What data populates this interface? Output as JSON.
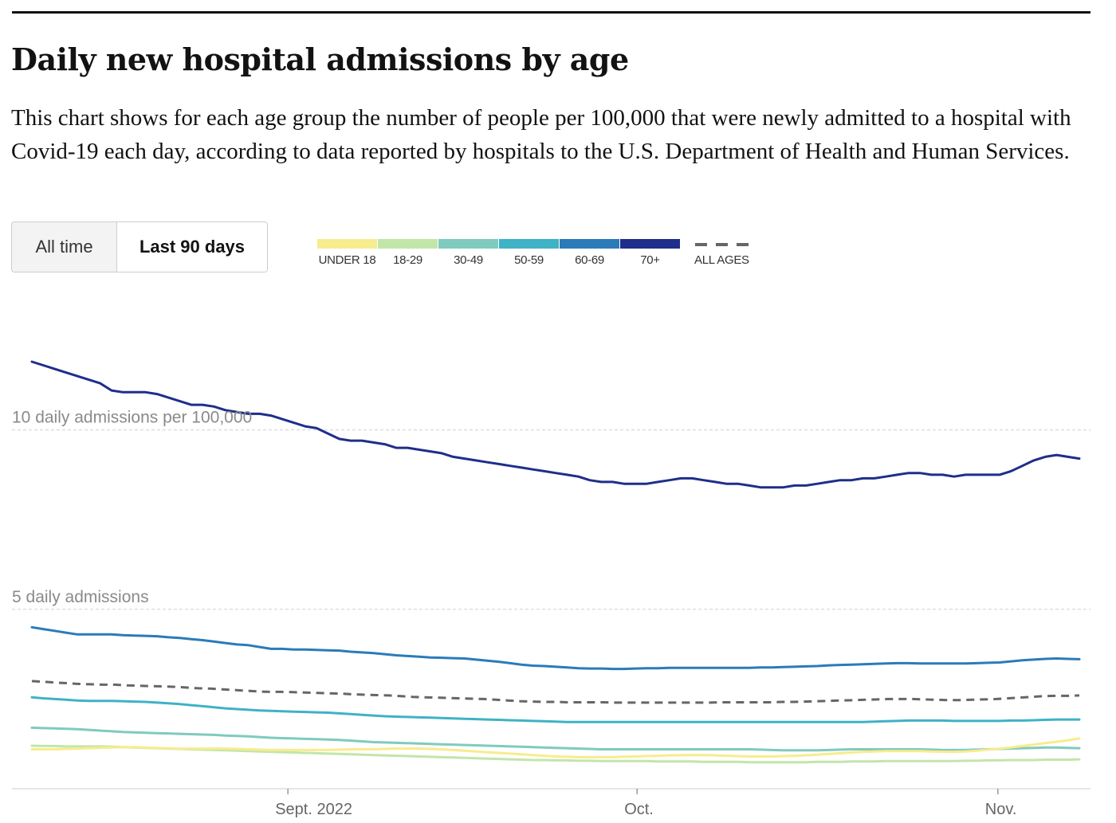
{
  "header": {
    "title": "Daily new hospital admissions by age",
    "subtitle": "This chart shows for each age group the number of people per 100,000 that were newly admitted to a hospital with Covid-19 each day, according to data reported by hospitals to the U.S. Department of Health and Human Services."
  },
  "toggle": {
    "all_time_label": "All time",
    "last_90_label": "Last 90 days",
    "selected": "Last 90 days"
  },
  "legend": {
    "items": [
      {
        "label": "UNDER 18",
        "color": "#f7ec8e"
      },
      {
        "label": "18-29",
        "color": "#c2e6aa"
      },
      {
        "label": "30-49",
        "color": "#7fcbbd"
      },
      {
        "label": "50-59",
        "color": "#3fb2c5"
      },
      {
        "label": "60-69",
        "color": "#2b7bb8"
      },
      {
        "label": "70+",
        "color": "#1f2e8a"
      }
    ],
    "all_ages_label": "ALL AGES",
    "all_ages_color": "#666666"
  },
  "chart_data": {
    "type": "line",
    "x_start": "2022-08-10",
    "x_end": "2022-11-08",
    "ylim": [
      0,
      13.1
    ],
    "grid_values": [
      5,
      10
    ],
    "grid_labels": [
      "5 daily admissions",
      "10 daily admissions per 100,000"
    ],
    "x_ticks": [
      {
        "date": "2022-09-01",
        "label": "Sept. 2022"
      },
      {
        "date": "2022-10-01",
        "label": "Oct."
      },
      {
        "date": "2022-11-01",
        "label": "Nov."
      }
    ],
    "series": [
      {
        "name": "70+",
        "color": "#1f2e8a",
        "dashed": false,
        "values": [
          11.9,
          11.8,
          11.7,
          11.6,
          11.5,
          11.4,
          11.3,
          11.1,
          11.05,
          11.05,
          11.05,
          11.0,
          10.9,
          10.8,
          10.7,
          10.7,
          10.65,
          10.55,
          10.5,
          10.45,
          10.45,
          10.4,
          10.3,
          10.2,
          10.1,
          10.05,
          9.9,
          9.75,
          9.7,
          9.7,
          9.65,
          9.6,
          9.5,
          9.5,
          9.45,
          9.4,
          9.35,
          9.25,
          9.2,
          9.15,
          9.1,
          9.05,
          9.0,
          8.95,
          8.9,
          8.85,
          8.8,
          8.75,
          8.7,
          8.6,
          8.55,
          8.55,
          8.5,
          8.5,
          8.5,
          8.55,
          8.6,
          8.65,
          8.65,
          8.6,
          8.55,
          8.5,
          8.5,
          8.45,
          8.4,
          8.4,
          8.4,
          8.45,
          8.45,
          8.5,
          8.55,
          8.6,
          8.6,
          8.65,
          8.65,
          8.7,
          8.75,
          8.8,
          8.8,
          8.75,
          8.75,
          8.7,
          8.75,
          8.75,
          8.75,
          8.75,
          8.85,
          9.0,
          9.15,
          9.25,
          9.3,
          9.25,
          9.2
        ]
      },
      {
        "name": "60-69",
        "color": "#2b7bb8",
        "dashed": false,
        "values": [
          4.5,
          4.45,
          4.4,
          4.35,
          4.3,
          4.3,
          4.3,
          4.3,
          4.28,
          4.27,
          4.26,
          4.25,
          4.22,
          4.2,
          4.17,
          4.14,
          4.1,
          4.06,
          4.02,
          4.0,
          3.95,
          3.9,
          3.9,
          3.88,
          3.88,
          3.87,
          3.86,
          3.85,
          3.82,
          3.8,
          3.78,
          3.75,
          3.72,
          3.7,
          3.68,
          3.66,
          3.65,
          3.64,
          3.63,
          3.6,
          3.57,
          3.54,
          3.5,
          3.46,
          3.43,
          3.42,
          3.4,
          3.38,
          3.36,
          3.35,
          3.35,
          3.34,
          3.34,
          3.35,
          3.36,
          3.36,
          3.37,
          3.37,
          3.37,
          3.37,
          3.37,
          3.37,
          3.37,
          3.37,
          3.38,
          3.38,
          3.39,
          3.4,
          3.41,
          3.42,
          3.44,
          3.45,
          3.46,
          3.47,
          3.48,
          3.49,
          3.5,
          3.5,
          3.49,
          3.49,
          3.49,
          3.49,
          3.49,
          3.5,
          3.51,
          3.52,
          3.55,
          3.58,
          3.6,
          3.62,
          3.63,
          3.62,
          3.61
        ]
      },
      {
        "name": "ALL AGES",
        "color": "#666666",
        "dashed": true,
        "values": [
          3.0,
          2.98,
          2.96,
          2.94,
          2.92,
          2.91,
          2.9,
          2.9,
          2.88,
          2.87,
          2.86,
          2.85,
          2.84,
          2.82,
          2.8,
          2.79,
          2.77,
          2.75,
          2.73,
          2.71,
          2.7,
          2.7,
          2.69,
          2.68,
          2.67,
          2.66,
          2.65,
          2.63,
          2.62,
          2.61,
          2.6,
          2.58,
          2.56,
          2.55,
          2.54,
          2.53,
          2.52,
          2.51,
          2.5,
          2.48,
          2.46,
          2.44,
          2.43,
          2.42,
          2.42,
          2.41,
          2.41,
          2.41,
          2.41,
          2.4,
          2.4,
          2.4,
          2.4,
          2.4,
          2.4,
          2.4,
          2.4,
          2.4,
          2.41,
          2.41,
          2.41,
          2.41,
          2.41,
          2.42,
          2.42,
          2.43,
          2.44,
          2.45,
          2.46,
          2.47,
          2.48,
          2.49,
          2.5,
          2.5,
          2.5,
          2.49,
          2.48,
          2.47,
          2.47,
          2.48,
          2.49,
          2.5,
          2.52,
          2.54,
          2.56,
          2.58,
          2.59,
          2.59,
          2.6
        ]
      },
      {
        "name": "50-59",
        "color": "#3fb2c5",
        "dashed": false,
        "values": [
          2.55,
          2.52,
          2.5,
          2.48,
          2.46,
          2.45,
          2.45,
          2.45,
          2.44,
          2.43,
          2.42,
          2.4,
          2.38,
          2.36,
          2.33,
          2.3,
          2.27,
          2.24,
          2.22,
          2.2,
          2.18,
          2.17,
          2.16,
          2.15,
          2.14,
          2.13,
          2.12,
          2.1,
          2.08,
          2.06,
          2.04,
          2.02,
          2.01,
          2.0,
          1.99,
          1.98,
          1.97,
          1.96,
          1.95,
          1.94,
          1.93,
          1.92,
          1.91,
          1.9,
          1.89,
          1.88,
          1.87,
          1.86,
          1.86,
          1.86,
          1.86,
          1.86,
          1.86,
          1.86,
          1.86,
          1.86,
          1.86,
          1.86,
          1.86,
          1.86,
          1.86,
          1.86,
          1.86,
          1.86,
          1.86,
          1.86,
          1.86,
          1.86,
          1.86,
          1.86,
          1.86,
          1.86,
          1.86,
          1.86,
          1.87,
          1.88,
          1.89,
          1.9,
          1.9,
          1.9,
          1.9,
          1.89,
          1.89,
          1.89,
          1.89,
          1.89,
          1.9,
          1.9,
          1.91,
          1.92,
          1.93,
          1.93,
          1.93
        ]
      },
      {
        "name": "30-49",
        "color": "#7fcbbd",
        "dashed": false,
        "values": [
          1.7,
          1.69,
          1.68,
          1.67,
          1.66,
          1.64,
          1.62,
          1.6,
          1.58,
          1.57,
          1.56,
          1.55,
          1.54,
          1.53,
          1.52,
          1.51,
          1.5,
          1.48,
          1.47,
          1.46,
          1.44,
          1.42,
          1.41,
          1.4,
          1.39,
          1.38,
          1.37,
          1.36,
          1.34,
          1.32,
          1.3,
          1.29,
          1.28,
          1.27,
          1.26,
          1.25,
          1.24,
          1.23,
          1.22,
          1.21,
          1.2,
          1.19,
          1.18,
          1.17,
          1.16,
          1.15,
          1.14,
          1.13,
          1.12,
          1.11,
          1.1,
          1.1,
          1.1,
          1.1,
          1.1,
          1.1,
          1.1,
          1.1,
          1.1,
          1.1,
          1.1,
          1.1,
          1.1,
          1.1,
          1.09,
          1.08,
          1.07,
          1.07,
          1.07,
          1.07,
          1.08,
          1.09,
          1.1,
          1.1,
          1.1,
          1.1,
          1.1,
          1.1,
          1.1,
          1.09,
          1.08,
          1.08,
          1.08,
          1.09,
          1.1,
          1.11,
          1.12,
          1.13,
          1.14,
          1.15,
          1.15,
          1.14,
          1.13
        ]
      },
      {
        "name": "18-29",
        "color": "#c2e6aa",
        "dashed": false,
        "values": [
          1.2,
          1.19,
          1.19,
          1.18,
          1.18,
          1.18,
          1.18,
          1.17,
          1.16,
          1.15,
          1.14,
          1.13,
          1.12,
          1.11,
          1.1,
          1.09,
          1.08,
          1.07,
          1.06,
          1.05,
          1.04,
          1.03,
          1.02,
          1.01,
          1.0,
          0.99,
          0.98,
          0.97,
          0.96,
          0.95,
          0.94,
          0.93,
          0.92,
          0.91,
          0.9,
          0.89,
          0.88,
          0.87,
          0.86,
          0.85,
          0.84,
          0.83,
          0.82,
          0.81,
          0.8,
          0.8,
          0.79,
          0.79,
          0.78,
          0.78,
          0.77,
          0.77,
          0.77,
          0.77,
          0.77,
          0.76,
          0.76,
          0.76,
          0.76,
          0.75,
          0.75,
          0.75,
          0.75,
          0.74,
          0.74,
          0.74,
          0.74,
          0.74,
          0.74,
          0.75,
          0.75,
          0.75,
          0.76,
          0.76,
          0.76,
          0.77,
          0.77,
          0.77,
          0.77,
          0.77,
          0.77,
          0.77,
          0.78,
          0.78,
          0.79,
          0.79,
          0.8,
          0.8,
          0.8,
          0.81,
          0.81,
          0.81,
          0.82
        ]
      },
      {
        "name": "UNDER 18",
        "color": "#f7ec8e",
        "dashed": false,
        "values": [
          1.1,
          1.1,
          1.1,
          1.11,
          1.12,
          1.13,
          1.14,
          1.15,
          1.16,
          1.16,
          1.15,
          1.14,
          1.13,
          1.12,
          1.12,
          1.12,
          1.12,
          1.12,
          1.11,
          1.1,
          1.09,
          1.08,
          1.08,
          1.08,
          1.08,
          1.08,
          1.08,
          1.09,
          1.1,
          1.1,
          1.1,
          1.11,
          1.12,
          1.12,
          1.12,
          1.11,
          1.1,
          1.08,
          1.06,
          1.04,
          1.02,
          1.0,
          0.98,
          0.96,
          0.94,
          0.92,
          0.9,
          0.89,
          0.88,
          0.88,
          0.88,
          0.88,
          0.89,
          0.9,
          0.91,
          0.92,
          0.93,
          0.94,
          0.94,
          0.94,
          0.93,
          0.92,
          0.91,
          0.9,
          0.9,
          0.9,
          0.91,
          0.92,
          0.93,
          0.95,
          0.97,
          0.99,
          1.01,
          1.03,
          1.04,
          1.05,
          1.05,
          1.05,
          1.05,
          1.04,
          1.03,
          1.03,
          1.04,
          1.06,
          1.09,
          1.12,
          1.15,
          1.19,
          1.23,
          1.27,
          1.31,
          1.35,
          1.4
        ]
      }
    ]
  }
}
